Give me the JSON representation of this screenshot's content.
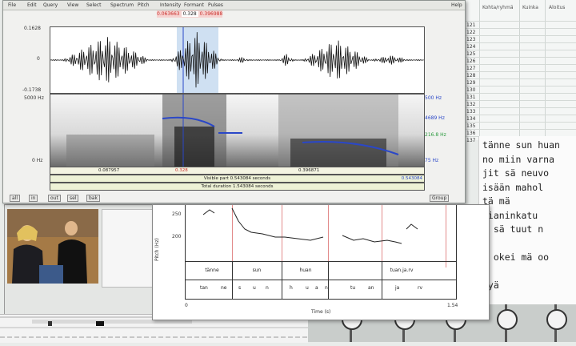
{
  "spreadsheet": {
    "headers": [
      "Kohta/ryhmä",
      "Kuinka",
      "Aloitus"
    ],
    "row_ids": [
      "121",
      "122",
      "123",
      "124",
      "125",
      "126",
      "127",
      "128",
      "129",
      "130",
      "131",
      "132",
      "133",
      "134",
      "135",
      "136",
      "137"
    ]
  },
  "transcript": {
    "lines": [
      "tänne sun huan",
      "no miin varna",
      "jit sä neuvo",
      "isään mahol",
      "tä mä",
      "bianinkatu",
      "s sä tuut n",
      "",
      "i okei mä oo",
      "",
      "lyä"
    ]
  },
  "praat": {
    "menu": [
      "File",
      "Edit",
      "Query",
      "View",
      "Select",
      "Spectrum",
      "Pitch",
      "Intensity",
      "Formant",
      "Pulses",
      "Help"
    ],
    "selection_readout": [
      "0.063663",
      "0.328",
      "0.396988"
    ],
    "waveform": {
      "ymax": "0.1628",
      "zero": "0",
      "ymin": "-0.1738"
    },
    "spectrogram": {
      "ytop": "5000 Hz",
      "ybottom": "0 Hz"
    },
    "right_labels": {
      "top": "500 Hz",
      "mid": "4689 Hz",
      "green": "216.8 Hz",
      "bottom": "75 Hz"
    },
    "time_marks": [
      "0.087957",
      "0.328",
      "0.396871"
    ],
    "visible_part": "Visible part 0.543084 seconds",
    "total_duration": "Total duration 1.543084 seconds",
    "end_time": "0.543084",
    "buttons": [
      "all",
      "in",
      "out",
      "sel",
      "bak"
    ],
    "group_label": "Group"
  },
  "pitch_window": {
    "ylabel": "Pitch (Hz)",
    "y_ticks": [
      "250",
      "200"
    ],
    "words": [
      "tänne",
      "sun",
      "huan",
      "tuan.ja.rv"
    ],
    "phones": [
      "tan",
      "ne",
      "s",
      "u",
      "n",
      "h",
      "u",
      "a",
      "n",
      "tu",
      "an",
      "ja",
      "rv"
    ],
    "x_start": "0",
    "x_end": "1.54",
    "xlabel": "Time (s)"
  },
  "colors": {
    "accent_blue": "#2a47c8",
    "accent_red": "#c9302c",
    "accent_green": "#2b9a3e"
  }
}
